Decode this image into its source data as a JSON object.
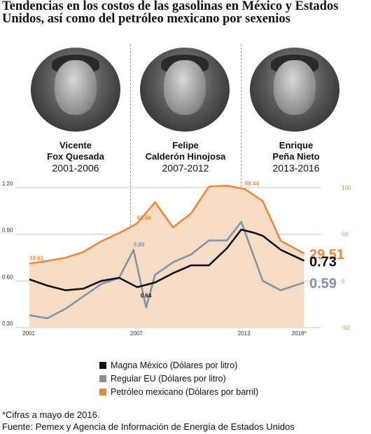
{
  "header": {
    "title": "Tendencias en los costos de las gasolinas en México y Estados Unidos, así como del petróleo mexicano por sexenios"
  },
  "presidents": [
    {
      "name_line1": "Vicente",
      "name_line2": "Fox Quesada",
      "years": "2001-2006"
    },
    {
      "name_line1": "Felipe",
      "name_line2": "Calderón Hinojosa",
      "years": "2007-2012"
    },
    {
      "name_line1": "Enrique",
      "name_line2": "Peña Nieto",
      "years": "2013-2016"
    }
  ],
  "legend": {
    "magna": "Magna México (Dólares por litro)",
    "regular": "Regular EU (Dólares por litro)",
    "petroleo": "Petróleo mexicano (Dólares por barril)"
  },
  "footer": {
    "note": "*Cifras a mayo de 2016.",
    "source": "Fuente: Pemex y Agencia de Información de Energía de Estados Unidos"
  },
  "colors": {
    "magna": "#111111",
    "regular": "#7f95a6",
    "petroleo": "#f0883a",
    "area": "#f6dcc4",
    "grid": "#c8c8c8"
  },
  "chart_data": {
    "type": "line",
    "left_axis": {
      "ylim": [
        0.3,
        1.2
      ],
      "ticks": [
        "0.30",
        "0.60",
        "0.90",
        "1.20"
      ]
    },
    "right_axis": {
      "ylim": [
        -50,
        100
      ],
      "ticks": [
        "-50",
        "0",
        "50",
        "100"
      ]
    },
    "x_ticks": [
      {
        "x": 2001,
        "label": "2001"
      },
      {
        "x": 2007,
        "label": "2007"
      },
      {
        "x": 2013,
        "label": "2013"
      },
      {
        "x": 2016,
        "label": "2016*"
      }
    ],
    "xlim": [
      2001,
      2016.4
    ],
    "series": [
      {
        "key": "petroleo",
        "axis": "right",
        "area": true,
        "x": [
          2001,
          2002,
          2003,
          2004,
          2005,
          2006,
          2007,
          2008,
          2009,
          2010,
          2011,
          2012,
          2013,
          2014,
          2015,
          2016.3
        ],
        "y": [
          18.61,
          21.5,
          24.8,
          31,
          42.5,
          51.3,
          61.64,
          84.4,
          57.4,
          72.3,
          101.1,
          102,
          98.44,
          85.5,
          43,
          29.51
        ]
      },
      {
        "key": "regular",
        "axis": "left",
        "x": [
          2001,
          2002,
          2003,
          2004,
          2005,
          2006,
          2006.8,
          2007.5,
          2008,
          2009,
          2010,
          2011,
          2012,
          2012.8,
          2014,
          2015,
          2016.3
        ],
        "y": [
          0.38,
          0.36,
          0.42,
          0.5,
          0.58,
          0.62,
          0.8,
          0.43,
          0.64,
          0.72,
          0.77,
          0.86,
          0.86,
          0.98,
          0.6,
          0.54,
          0.59
        ]
      },
      {
        "key": "magna",
        "axis": "left",
        "x": [
          2001,
          2002,
          2003,
          2004,
          2005,
          2006,
          2007,
          2008,
          2009,
          2010,
          2011,
          2012,
          2012.8,
          2013.5,
          2014,
          2015,
          2016.3
        ],
        "y": [
          0.61,
          0.57,
          0.54,
          0.55,
          0.6,
          0.62,
          0.56,
          0.59,
          0.65,
          0.7,
          0.7,
          0.81,
          0.93,
          0.91,
          0.89,
          0.8,
          0.73
        ]
      }
    ],
    "annotations": [
      {
        "text": "18.61",
        "x": 2001,
        "y": 18.61,
        "axis": "right",
        "color": "petroleo",
        "size": "small"
      },
      {
        "text": "61.64",
        "x": 2007,
        "y": 61.64,
        "axis": "right",
        "color": "petroleo",
        "size": "small"
      },
      {
        "text": "98.44",
        "x": 2013,
        "y": 98.44,
        "axis": "right",
        "color": "petroleo",
        "size": "small"
      },
      {
        "text": "0.80",
        "x": 2006.8,
        "y": 0.8,
        "axis": "left",
        "color": "regular",
        "size": "small"
      },
      {
        "text": "0.64",
        "x": 2007.5,
        "y": 0.64,
        "axis": "left",
        "color": "magna",
        "size": "small"
      },
      {
        "text": "29.51",
        "x": 2016.4,
        "y": 29.51,
        "axis": "right",
        "color": "petroleo",
        "size": "big"
      },
      {
        "text": "0.73",
        "x": 2016.4,
        "y": 0.73,
        "axis": "left",
        "color": "magna",
        "size": "big"
      },
      {
        "text": "0.59",
        "x": 2016.4,
        "y": 0.59,
        "axis": "left",
        "color": "regular",
        "size": "big"
      }
    ]
  }
}
